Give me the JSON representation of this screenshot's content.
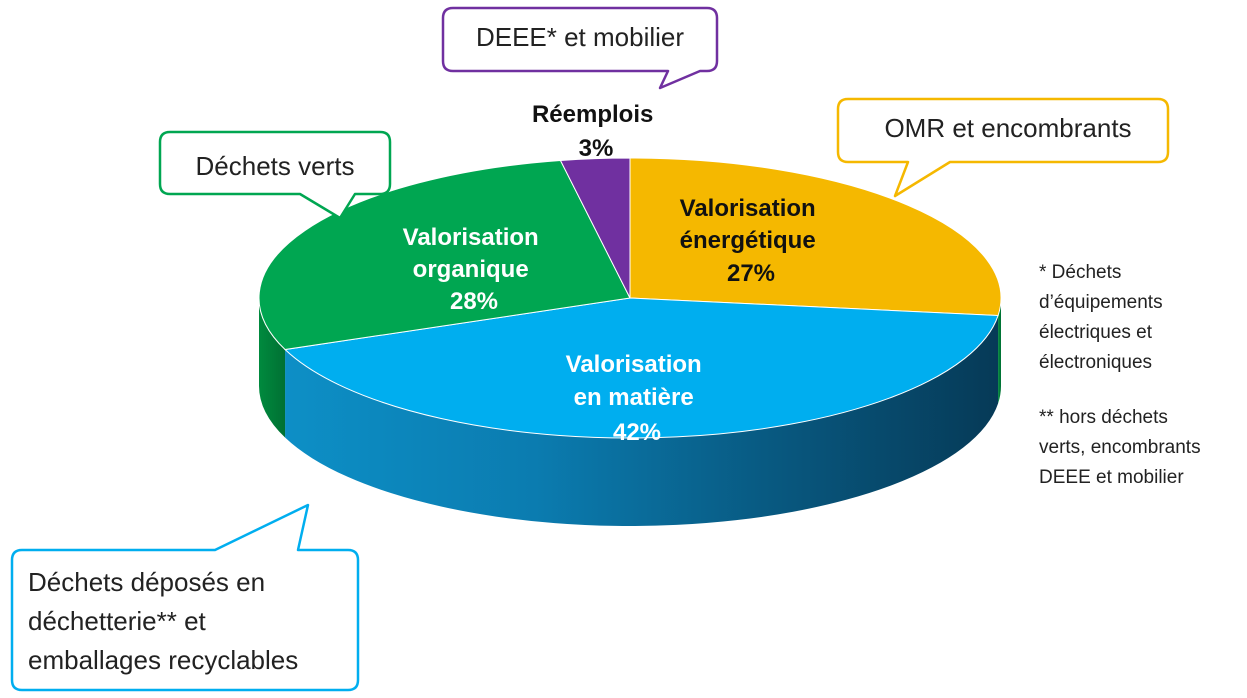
{
  "chart_data": {
    "type": "pie",
    "title": "",
    "slices": [
      {
        "label": "Valorisation en matière",
        "value": 42,
        "value_label": "42%",
        "color": "#00aeef"
      },
      {
        "label": "Valorisation organique",
        "value": 28,
        "value_label": "28%",
        "color": "#00a651"
      },
      {
        "label": "Réemplois",
        "value": 3,
        "value_label": "3%",
        "color": "#7030a0"
      },
      {
        "label": "Valorisation énergétique",
        "value": 27,
        "value_label": "27%",
        "color": "#f5b800"
      }
    ],
    "slice_label_lines": {
      "matiere": [
        "Valorisation",
        "en matière",
        "42%"
      ],
      "organique": [
        "Valorisation",
        "organique",
        "28%"
      ],
      "reemplois": [
        "Réemplois",
        "3%"
      ],
      "energetique": [
        "Valorisation",
        "énergétique",
        "27%"
      ]
    },
    "callouts": {
      "deee": {
        "lines": [
          "DEEE* et mobilier"
        ],
        "color": "#7030a0"
      },
      "omr": {
        "lines": [
          "OMR et encombrants"
        ],
        "color": "#f5b800"
      },
      "verts": {
        "lines": [
          "Déchets verts"
        ],
        "color": "#00a651"
      },
      "decheterie": {
        "lines": [
          "Déchets déposés en",
          "déchetterie** et",
          "emballages recyclables"
        ],
        "color": "#00aeef"
      }
    }
  },
  "notes": {
    "note1": [
      "* Déchets",
      "d’équipements",
      "électriques et",
      "électroniques"
    ],
    "note2": [
      "** hors déchets",
      "verts, encombrants",
      "DEEE et mobilier"
    ]
  }
}
